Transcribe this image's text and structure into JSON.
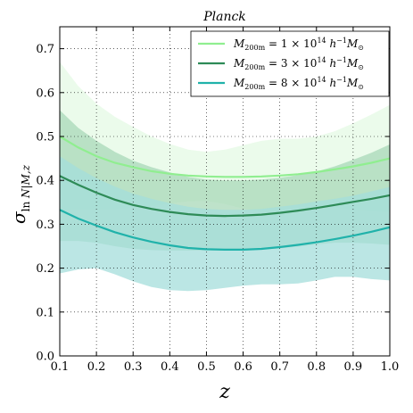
{
  "chart_data": {
    "type": "line",
    "title": "Planck",
    "xlabel": "z",
    "ylabel": "σ_{ln N|M,z}",
    "xlim": [
      0.1,
      1.0
    ],
    "ylim": [
      0.0,
      0.75
    ],
    "xticks": [
      0.1,
      0.2,
      0.3,
      0.4,
      0.5,
      0.6,
      0.7,
      0.8,
      0.9,
      1.0
    ],
    "xtick_labels": [
      "0.1",
      "0.2",
      "0.3",
      "0.4",
      "0.5",
      "0.6",
      "0.7",
      "0.8",
      "0.9",
      "1.0"
    ],
    "yticks": [
      0.0,
      0.1,
      0.2,
      0.3,
      0.4,
      0.5,
      0.6,
      0.7
    ],
    "ytick_labels": [
      "0.0",
      "0.1",
      "0.2",
      "0.3",
      "0.4",
      "0.5",
      "0.6",
      "0.7"
    ],
    "grid": true,
    "legend_position": "top-right",
    "x": [
      0.1,
      0.15,
      0.2,
      0.25,
      0.3,
      0.35,
      0.4,
      0.45,
      0.5,
      0.55,
      0.6,
      0.65,
      0.7,
      0.75,
      0.8,
      0.85,
      0.9,
      0.95,
      1.0
    ],
    "series": [
      {
        "legend": {
          "mass": "1",
          "exp": "14"
        },
        "color": "#90ee90",
        "band_color": "#e4f9e4",
        "values": [
          0.5,
          0.475,
          0.455,
          0.44,
          0.43,
          0.421,
          0.415,
          0.411,
          0.409,
          0.408,
          0.408,
          0.409,
          0.411,
          0.414,
          0.419,
          0.425,
          0.432,
          0.44,
          0.45
        ],
        "upper": [
          0.67,
          0.615,
          0.575,
          0.545,
          0.522,
          0.5,
          0.483,
          0.47,
          0.465,
          0.47,
          0.48,
          0.49,
          0.495,
          0.495,
          0.5,
          0.512,
          0.53,
          0.55,
          0.572
        ],
        "lower": [
          0.33,
          0.335,
          0.335,
          0.335,
          0.338,
          0.342,
          0.347,
          0.352,
          0.353,
          0.346,
          0.336,
          0.328,
          0.327,
          0.333,
          0.338,
          0.338,
          0.334,
          0.33,
          0.328
        ]
      },
      {
        "legend": {
          "mass": "3",
          "exp": "14"
        },
        "color": "#2e8b57",
        "band_color": "#a8d8b8",
        "values": [
          0.41,
          0.39,
          0.372,
          0.356,
          0.344,
          0.335,
          0.328,
          0.323,
          0.32,
          0.319,
          0.32,
          0.322,
          0.326,
          0.331,
          0.337,
          0.344,
          0.351,
          0.358,
          0.366
        ],
        "upper": [
          0.56,
          0.52,
          0.49,
          0.465,
          0.445,
          0.43,
          0.418,
          0.408,
          0.402,
          0.4,
          0.4,
          0.402,
          0.406,
          0.412,
          0.42,
          0.432,
          0.447,
          0.463,
          0.482
        ],
        "lower": [
          0.262,
          0.262,
          0.258,
          0.25,
          0.244,
          0.241,
          0.24,
          0.24,
          0.24,
          0.24,
          0.24,
          0.242,
          0.245,
          0.249,
          0.254,
          0.258,
          0.258,
          0.256,
          0.253
        ]
      },
      {
        "legend": {
          "mass": "8",
          "exp": "14"
        },
        "color": "#20b2aa",
        "band_color": "#a4dedb",
        "values": [
          0.333,
          0.313,
          0.297,
          0.282,
          0.27,
          0.26,
          0.252,
          0.246,
          0.243,
          0.242,
          0.242,
          0.244,
          0.248,
          0.253,
          0.259,
          0.266,
          0.274,
          0.283,
          0.293
        ],
        "upper": [
          0.455,
          0.428,
          0.405,
          0.386,
          0.37,
          0.358,
          0.348,
          0.34,
          0.335,
          0.333,
          0.333,
          0.335,
          0.34,
          0.345,
          0.352,
          0.358,
          0.365,
          0.375,
          0.385
        ],
        "lower": [
          0.188,
          0.197,
          0.2,
          0.186,
          0.17,
          0.157,
          0.15,
          0.148,
          0.15,
          0.155,
          0.16,
          0.163,
          0.163,
          0.165,
          0.172,
          0.18,
          0.18,
          0.175,
          0.172
        ]
      }
    ]
  }
}
